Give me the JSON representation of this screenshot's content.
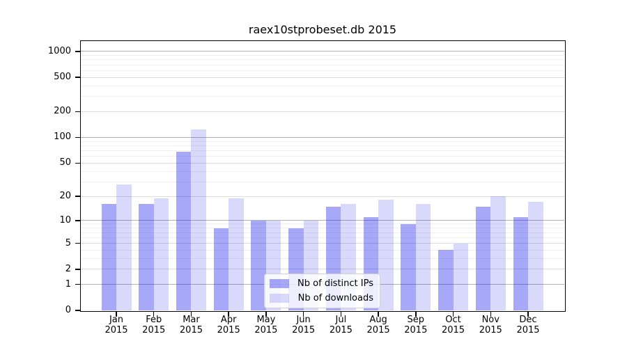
{
  "title": "raex10stprobeset.db 2015",
  "colors": {
    "distinct_ips": "rgba(0,0,238,0.34)",
    "downloads": "rgba(0,0,238,0.15)",
    "grid_major": "#b3b3b3",
    "grid_mid": "#dcdcdc",
    "grid_minor": "#f0f0f0"
  },
  "chart_data": {
    "type": "bar",
    "title": "raex10stprobeset.db 2015",
    "categories": [
      "Jan 2015",
      "Feb 2015",
      "Mar 2015",
      "Apr 2015",
      "May 2015",
      "Jun 2015",
      "Jul 2015",
      "Aug 2015",
      "Sep 2015",
      "Oct 2015",
      "Nov 2015",
      "Dec 2015"
    ],
    "series": [
      {
        "name": "Nb of distinct IPs",
        "color": "rgba(0,0,238,0.34)",
        "values": [
          16,
          16,
          68,
          8,
          10,
          8,
          15,
          11,
          9,
          4,
          15,
          11
        ]
      },
      {
        "name": "Nb of downloads",
        "color": "rgba(0,0,238,0.15)",
        "values": [
          28,
          19,
          125,
          19,
          10,
          10,
          16,
          18,
          16,
          5,
          20,
          17
        ]
      }
    ],
    "yscale": "log10(1+x)",
    "yticks": [
      1000,
      500,
      200,
      100,
      50,
      20,
      10,
      5,
      2,
      1,
      0
    ],
    "ylim": [
      0,
      1320
    ],
    "grid": true,
    "legend_position": "inside lower-center"
  }
}
